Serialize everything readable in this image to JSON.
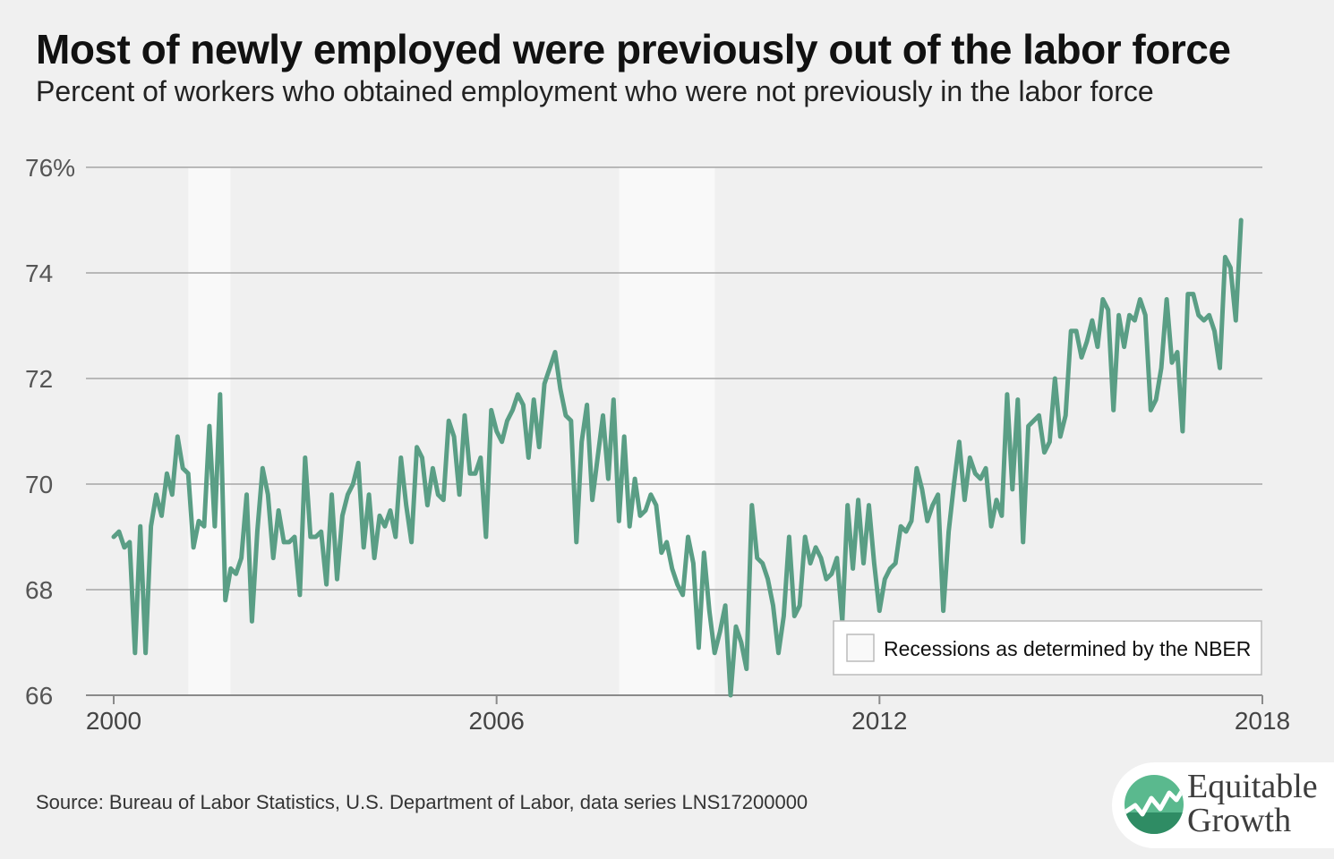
{
  "title": "Most of newly employed were previously out of the labor force",
  "subtitle": "Percent of workers who obtained employment who were not previously in the labor force",
  "source": "Source: Bureau of Labor Statistics, U.S. Department of Labor, data series LNS17200000",
  "logo": {
    "line1": "Equitable",
    "line2": "Growth"
  },
  "colors": {
    "line": "#5a9e85",
    "recession": "#f9f9f9",
    "grid": "#a6a6a6",
    "background": "#f0f0f0"
  },
  "chart_data": {
    "type": "line",
    "x_start": 2000,
    "x_step_months": 1,
    "xlim": [
      2000,
      2018
    ],
    "ylim": [
      66,
      76
    ],
    "y_ticks": [
      66,
      68,
      70,
      72,
      74,
      76
    ],
    "y_tick_labels": [
      "66",
      "68",
      "70",
      "72",
      "74",
      "76%"
    ],
    "x_ticks": [
      2000,
      2006,
      2012,
      2018
    ],
    "x_tick_labels": [
      "2000",
      "2006",
      "2012",
      "2018"
    ],
    "grid": true,
    "legend": {
      "label": "Recessions as determined by the NBER",
      "position": "bottom-right"
    },
    "recessions": [
      [
        2001.17,
        2001.83
      ],
      [
        2007.92,
        2009.42
      ]
    ],
    "series": [
      {
        "values": [
          69.0,
          69.1,
          68.8,
          68.9,
          66.8,
          69.2,
          66.8,
          69.2,
          69.8,
          69.4,
          70.2,
          69.8,
          70.9,
          70.3,
          70.2,
          68.8,
          69.3,
          69.2,
          71.1,
          69.2,
          71.7,
          67.8,
          68.4,
          68.3,
          68.6,
          69.8,
          67.4,
          69.1,
          70.3,
          69.8,
          68.6,
          69.5,
          68.9,
          68.9,
          69.0,
          67.9,
          70.5,
          69.0,
          69.0,
          69.1,
          68.1,
          69.8,
          68.2,
          69.4,
          69.8,
          70.0,
          70.4,
          68.8,
          69.8,
          68.6,
          69.4,
          69.2,
          69.5,
          69.0,
          70.5,
          69.6,
          68.9,
          70.7,
          70.5,
          69.6,
          70.3,
          69.8,
          69.7,
          71.2,
          70.9,
          69.8,
          71.3,
          70.2,
          70.2,
          70.5,
          69.0,
          71.4,
          71.0,
          70.8,
          71.2,
          71.4,
          71.7,
          71.5,
          70.5,
          71.6,
          70.7,
          71.9,
          72.2,
          72.5,
          71.8,
          71.3,
          71.2,
          68.9,
          70.8,
          71.5,
          69.7,
          70.5,
          71.3,
          70.1,
          71.6,
          69.3,
          70.9,
          69.2,
          70.1,
          69.4,
          69.5,
          69.8,
          69.6,
          68.7,
          68.9,
          68.4,
          68.1,
          67.9,
          69.0,
          68.5,
          66.9,
          68.7,
          67.6,
          66.8,
          67.2,
          67.7,
          66.0,
          67.3,
          67.0,
          66.5,
          69.6,
          68.6,
          68.5,
          68.2,
          67.7,
          66.8,
          67.5,
          69.0,
          67.5,
          67.7,
          69.0,
          68.5,
          68.8,
          68.6,
          68.2,
          68.3,
          68.6,
          67.4,
          69.6,
          68.4,
          69.7,
          68.5,
          69.6,
          68.5,
          67.6,
          68.2,
          68.4,
          68.5,
          69.2,
          69.1,
          69.3,
          70.3,
          69.9,
          69.3,
          69.6,
          69.8,
          67.6,
          69.1,
          70.0,
          70.8,
          69.7,
          70.5,
          70.2,
          70.1,
          70.3,
          69.2,
          69.7,
          69.4,
          71.7,
          69.9,
          71.6,
          68.9,
          71.1,
          71.2,
          71.3,
          70.6,
          70.8,
          72.0,
          70.9,
          71.3,
          72.9,
          72.9,
          72.4,
          72.7,
          73.1,
          72.6,
          73.5,
          73.3,
          71.4,
          73.2,
          72.6,
          73.2,
          73.1,
          73.5,
          73.2,
          71.4,
          71.6,
          72.2,
          73.5,
          72.3,
          72.5,
          71.0,
          73.6,
          73.6,
          73.2,
          73.1,
          73.2,
          72.9,
          72.2,
          74.3,
          74.1,
          73.1,
          75.0
        ]
      }
    ]
  }
}
